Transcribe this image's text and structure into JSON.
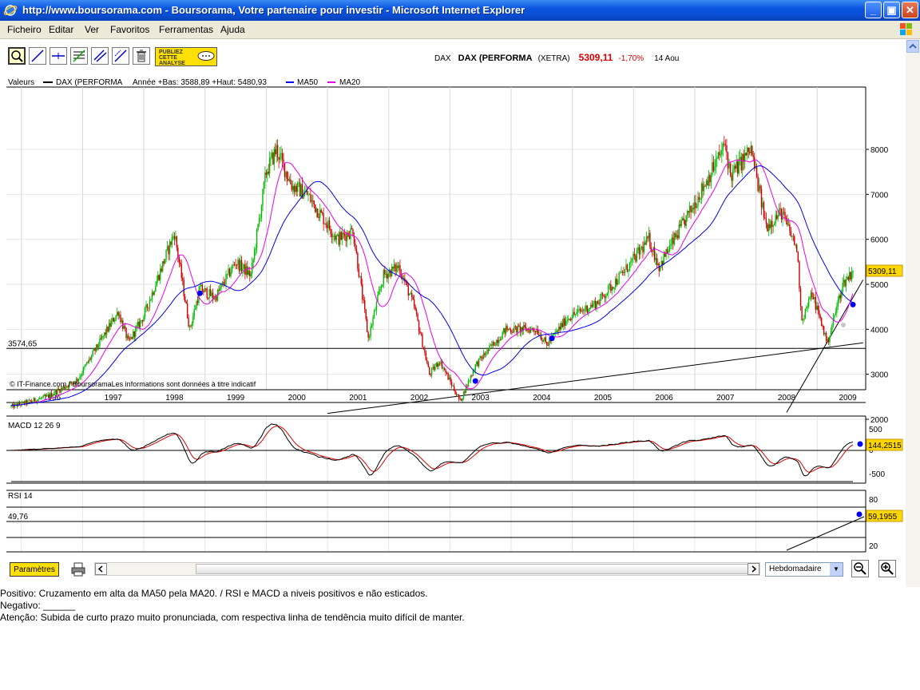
{
  "window": {
    "title": "http://www.boursorama.com - Boursorama, Votre partenaire pour investir - Microsoft Internet Explorer",
    "minimize": "_",
    "maximize": "▣",
    "close": "✕"
  },
  "menu": [
    "Ficheiro",
    "Editar",
    "Ver",
    "Favoritos",
    "Ferramentas",
    "Ajuda"
  ],
  "toolbar": {
    "tools": [
      "zoom-tool-icon",
      "trend-line-icon",
      "horizontal-line-icon",
      "fibonacci-icon",
      "channel-icon",
      "parallel-line-icon",
      "trash-icon"
    ],
    "publiez_lines": [
      "PUBLIEZ",
      "CETTE",
      "ANALYSE"
    ]
  },
  "quote": {
    "exchange_code": "DAX",
    "name": "DAX (PERFORMA",
    "market": "(XETRA)",
    "price": "5309,11",
    "change": "-1,70%",
    "date": "14 Aou"
  },
  "legend": {
    "label": "Valeurs",
    "series_name": "DAX (PERFORMA",
    "range_text": "Année +Bas: 3588,89 +Haut: 5480,93",
    "ma50": "MA50",
    "ma20": "MA20",
    "ma50_color": "#0000ee",
    "ma20_color": "#ee00ee"
  },
  "price_panel": {
    "y_ticks": [
      "8000",
      "7000",
      "6000",
      "5000",
      "4000",
      "3000",
      "2000"
    ],
    "horizontal_level_label": "3574,65",
    "last_value_badge": "5309,11",
    "copyright": "© IT-Finance.com / BoursoramaLes informations sont données à titre indicatif"
  },
  "x_axis": {
    "years": [
      "1996",
      "1997",
      "1998",
      "1999",
      "2000",
      "2001",
      "2002",
      "2003",
      "2004",
      "2005",
      "2006",
      "2007",
      "2008",
      "2009"
    ]
  },
  "macd_panel": {
    "label": "MACD 12 26 9",
    "y_ticks": [
      "500",
      "0",
      "-500"
    ],
    "last_value_badge": "144,2515"
  },
  "rsi_panel": {
    "label": "RSI 14",
    "level_label": "49,76",
    "y_ticks": [
      "80",
      "20"
    ],
    "last_value_badge": "59,1955"
  },
  "bottom": {
    "params_button": "Paramètres",
    "period_select": "Hebdomadaire"
  },
  "notes": {
    "positivo": "Positivo:  Cruzamento em alta da MA50 pela MA20.   /  RSI e MACD a niveis positivos e não esticados.",
    "negativo": "Negativo: ______",
    "atencao": "Atenção: Subida de curto prazo muito pronunciada, com respectiva linha de tendência muito difícil de manter."
  },
  "colors": {
    "up_candle": "#00bb00",
    "down_candle": "#cc0000",
    "badge_bg": "#ffd700",
    "price_change": "#dd0000"
  },
  "chart_data": {
    "type": "candlestick",
    "title": "DAX (PERFORMA",
    "ylabel": "",
    "ylim": [
      1900,
      8500
    ],
    "anchors": [
      {
        "date": "1995-11",
        "value": 2280
      },
      {
        "date": "1996-06",
        "value": 2500
      },
      {
        "date": "1996-12",
        "value": 2880
      },
      {
        "date": "1997-03",
        "value": 3450
      },
      {
        "date": "1997-08",
        "value": 4400
      },
      {
        "date": "1997-10",
        "value": 3700
      },
      {
        "date": "1998-01",
        "value": 4300
      },
      {
        "date": "1998-07",
        "value": 6150
      },
      {
        "date": "1998-10",
        "value": 4000
      },
      {
        "date": "1998-12",
        "value": 4900
      },
      {
        "date": "1999-03",
        "value": 4700
      },
      {
        "date": "1999-07",
        "value": 5500
      },
      {
        "date": "1999-10",
        "value": 5200
      },
      {
        "date": "2000-01",
        "value": 7500
      },
      {
        "date": "2000-03",
        "value": 8000
      },
      {
        "date": "2000-06",
        "value": 7200
      },
      {
        "date": "2000-09",
        "value": 7000
      },
      {
        "date": "2000-12",
        "value": 6500
      },
      {
        "date": "2001-03",
        "value": 6000
      },
      {
        "date": "2001-06",
        "value": 6200
      },
      {
        "date": "2001-09",
        "value": 3800
      },
      {
        "date": "2001-12",
        "value": 5200
      },
      {
        "date": "2002-03",
        "value": 5400
      },
      {
        "date": "2002-06",
        "value": 4500
      },
      {
        "date": "2002-09",
        "value": 3000
      },
      {
        "date": "2002-11",
        "value": 3300
      },
      {
        "date": "2003-03",
        "value": 2400
      },
      {
        "date": "2003-06",
        "value": 3200
      },
      {
        "date": "2003-12",
        "value": 4000
      },
      {
        "date": "2004-06",
        "value": 4000
      },
      {
        "date": "2004-08",
        "value": 3650
      },
      {
        "date": "2004-12",
        "value": 4250
      },
      {
        "date": "2005-06",
        "value": 4600
      },
      {
        "date": "2005-12",
        "value": 5400
      },
      {
        "date": "2006-04",
        "value": 6000
      },
      {
        "date": "2006-06",
        "value": 5400
      },
      {
        "date": "2006-12",
        "value": 6600
      },
      {
        "date": "2007-07",
        "value": 8100
      },
      {
        "date": "2007-08",
        "value": 7400
      },
      {
        "date": "2007-12",
        "value": 8000
      },
      {
        "date": "2008-03",
        "value": 6300
      },
      {
        "date": "2008-06",
        "value": 6600
      },
      {
        "date": "2008-09",
        "value": 5800
      },
      {
        "date": "2008-10",
        "value": 4200
      },
      {
        "date": "2008-12",
        "value": 4800
      },
      {
        "date": "2009-03",
        "value": 3700
      },
      {
        "date": "2009-06",
        "value": 5000
      },
      {
        "date": "2009-08",
        "value": 5309
      }
    ],
    "markers": [
      {
        "date": "1998-12",
        "value": 4800
      },
      {
        "date": "2003-06",
        "value": 2850
      },
      {
        "date": "2004-09",
        "value": 3800
      },
      {
        "date": "2009-08",
        "value": 4550
      }
    ],
    "horizontal_level": 3574.65,
    "trendlines": [
      {
        "from": {
          "date": "2001-01",
          "value": 2130
        },
        "to": {
          "date": "2009-10",
          "value": 3700
        }
      },
      {
        "from": {
          "date": "2008-07",
          "value": 2150
        },
        "to": {
          "date": "2009-10",
          "value": 5100
        }
      }
    ],
    "last_value": 5309.11
  }
}
